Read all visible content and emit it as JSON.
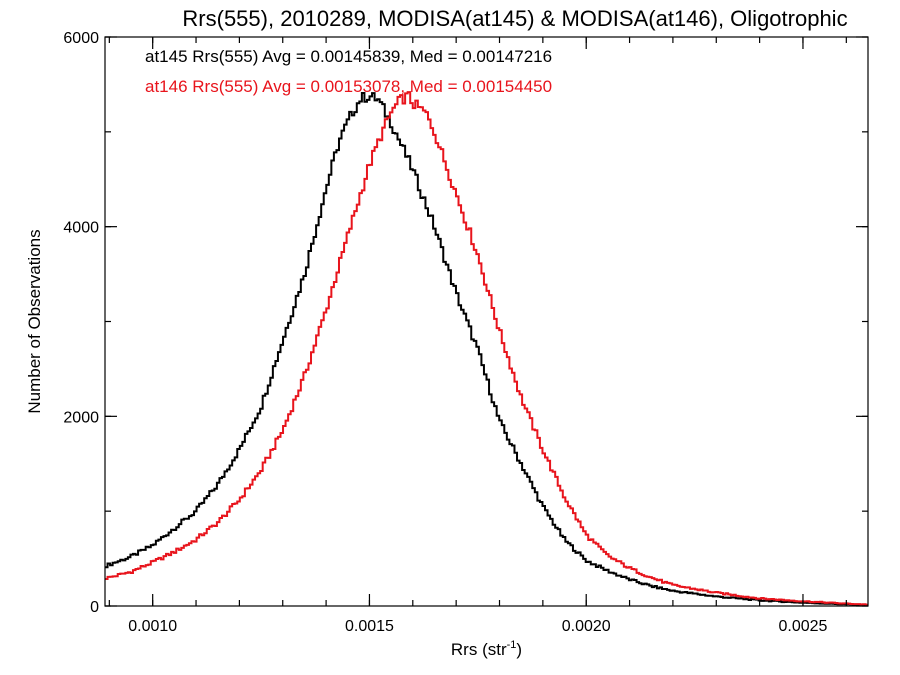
{
  "chart_data": {
    "type": "line",
    "title": "Rrs(555), 2010289, MODISA(at145) & MODISA(at146), Oligotrophic",
    "xlabel_main": "Rrs (str",
    "xlabel_sup": "-1",
    "xlabel_end": ")",
    "ylabel": "Number of Observations",
    "xlim": [
      0.00089,
      0.00265
    ],
    "ylim": [
      0,
      6000
    ],
    "x_ticks": [
      0.001,
      0.0015,
      0.002,
      0.0025
    ],
    "x_tick_labels": [
      "0.0010",
      "0.0015",
      "0.0020",
      "0.0025"
    ],
    "y_ticks": [
      0,
      2000,
      4000,
      6000
    ],
    "y_tick_labels": [
      "0",
      "2000",
      "4000",
      "6000"
    ],
    "x_minor_step": 0.0001,
    "y_minor_step": 1000,
    "annotations": [
      {
        "text": "at145 Rrs(555) Avg = 0.00145839, Med = 0.00147216",
        "color": "#000000"
      },
      {
        "text": "at146 Rrs(555) Avg = 0.00153078, Med = 0.00154450",
        "color": "#e8141c"
      }
    ],
    "series": [
      {
        "color": "#000000",
        "x": [
          0.00089,
          0.00095,
          0.001,
          0.00105,
          0.0011,
          0.00115,
          0.0012,
          0.00125,
          0.0013,
          0.00135,
          0.0014,
          0.00143,
          0.00146,
          0.00148,
          0.0015,
          0.00152,
          0.00155,
          0.00158,
          0.0016,
          0.00165,
          0.0017,
          0.00175,
          0.0018,
          0.00185,
          0.0019,
          0.00195,
          0.002,
          0.00205,
          0.0021,
          0.00215,
          0.0022,
          0.0023,
          0.0024,
          0.0025,
          0.0026,
          0.00265
        ],
        "y": [
          420,
          520,
          640,
          820,
          1000,
          1280,
          1650,
          2100,
          2800,
          3500,
          4400,
          4900,
          5200,
          5350,
          5380,
          5340,
          5100,
          4800,
          4600,
          4000,
          3300,
          2700,
          1950,
          1500,
          1050,
          700,
          480,
          370,
          280,
          210,
          160,
          100,
          60,
          35,
          18,
          10
        ]
      },
      {
        "color": "#e8141c",
        "x": [
          0.00089,
          0.00095,
          0.001,
          0.00105,
          0.0011,
          0.00115,
          0.0012,
          0.00125,
          0.0013,
          0.00135,
          0.0014,
          0.00145,
          0.00148,
          0.0015,
          0.00153,
          0.00155,
          0.00157,
          0.00159,
          0.0016,
          0.00163,
          0.00165,
          0.0017,
          0.00175,
          0.0018,
          0.00185,
          0.0019,
          0.00195,
          0.002,
          0.00205,
          0.0021,
          0.00215,
          0.0022,
          0.0023,
          0.0024,
          0.0025,
          0.0026,
          0.00265
        ],
        "y": [
          290,
          360,
          460,
          570,
          700,
          880,
          1120,
          1430,
          1850,
          2420,
          3120,
          3900,
          4350,
          4650,
          5000,
          5200,
          5330,
          5380,
          5300,
          5200,
          5000,
          4350,
          3700,
          2900,
          2200,
          1650,
          1150,
          750,
          530,
          400,
          300,
          220,
          140,
          80,
          50,
          25,
          15
        ]
      }
    ]
  }
}
